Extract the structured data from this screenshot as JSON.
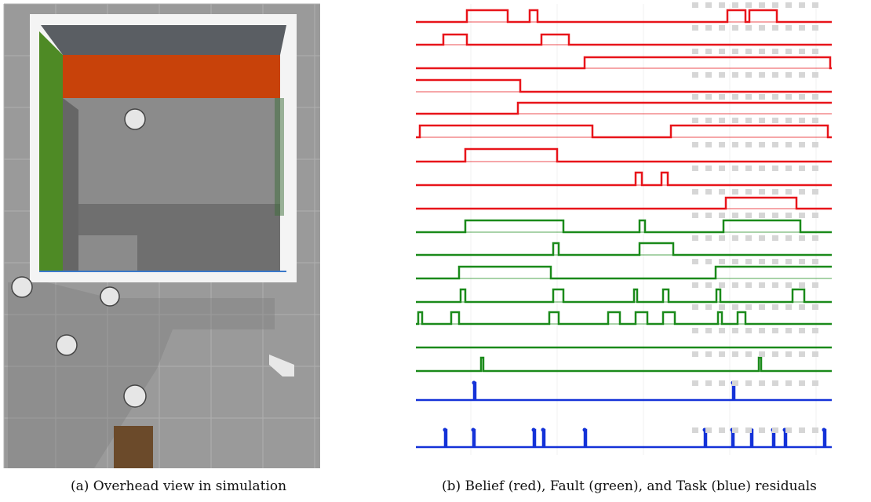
{
  "figure": {
    "panels": [
      {
        "caption": "(a) Overhead view in simulation"
      },
      {
        "caption": "(b) Belief (red), Fault (green), and Task (blue) residuals"
      }
    ]
  }
}
